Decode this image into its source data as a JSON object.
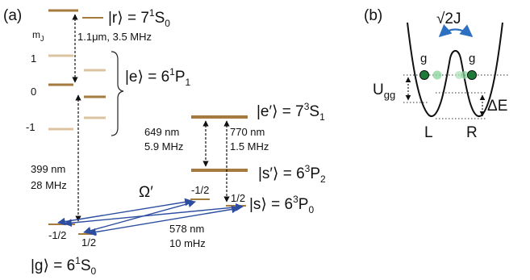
{
  "panel_a": {
    "label": "(a)",
    "mj_label": "m",
    "mj_sub": "J",
    "mj_values": [
      "1",
      "0",
      "-1"
    ],
    "states": {
      "r": {
        "ket": "|r⟩ = 7",
        "sup": "1",
        "term": "S",
        "sub": "0"
      },
      "e": {
        "ket": "|e⟩ = 6",
        "sup": "1",
        "term": "P",
        "sub": "1"
      },
      "e_prime": {
        "ket": "|e′⟩ = 7",
        "sup": "3",
        "term": "S",
        "sub": "1"
      },
      "s_prime": {
        "ket": "|s′⟩ = 6",
        "sup": "3",
        "term": "P",
        "sub": "2"
      },
      "s": {
        "ket": "|s⟩ = 6",
        "sup": "3",
        "term": "P",
        "sub": "0"
      },
      "g": {
        "ket": "|g⟩ = 6",
        "sup": "1",
        "term": "S",
        "sub": "0"
      }
    },
    "transitions": {
      "r_e": "1.1μm, 3.5 MHz",
      "g_e_wavelength": "399 nm",
      "g_e_width": "28 MHz",
      "sp_ep_wavelength": "649 nm",
      "sp_ep_width": "5.9 MHz",
      "s_ep_wavelength": "770 nm",
      "s_ep_width": "1.5 MHz",
      "g_s_wavelength": "578 nm",
      "g_s_width": "10 mHz"
    },
    "omega_prime": "Ω′",
    "spin_labels": {
      "s_minus": "-1/2",
      "s_plus": "1/2",
      "g_minus": "-1/2",
      "g_plus": "1/2"
    },
    "colors": {
      "level": "#a57a3e",
      "level_light": "#dcc4a2",
      "arrow": "#2d4ea0"
    }
  },
  "panel_b": {
    "label": "(b)",
    "tunnel_label": "√2J",
    "atom_labels": [
      "g",
      "g"
    ],
    "u_label": "U",
    "u_sub": "gg",
    "delta_label": "ΔE",
    "well_labels": [
      "L",
      "R"
    ],
    "colors": {
      "atom": "#1f7a3a",
      "atom_faded": "#8fd69f",
      "tunnel_arrow": "#2d6fc0"
    }
  }
}
